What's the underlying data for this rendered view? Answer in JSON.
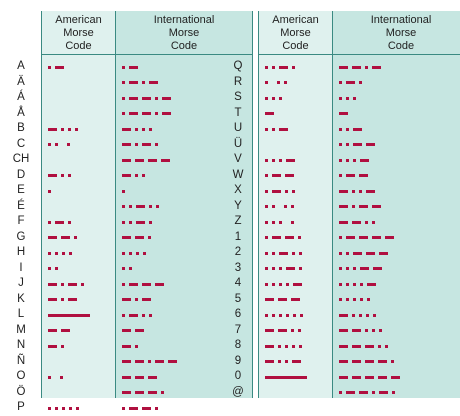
{
  "headers": {
    "american": [
      "American",
      "Morse",
      "Code"
    ],
    "international": [
      "International",
      "Morse",
      "Code"
    ]
  },
  "left_table": [
    {
      "char": "A",
      "american": ".-",
      "international": ".-"
    },
    {
      "char": "Ä",
      "american": "",
      "international": ".-.-"
    },
    {
      "char": "Á",
      "american": "",
      "international": ".--.-"
    },
    {
      "char": "Å",
      "american": "",
      "international": ".--.-"
    },
    {
      "char": "B",
      "american": "-...",
      "international": "-..."
    },
    {
      "char": "C",
      "american": ".. .",
      "international": "-.-."
    },
    {
      "char": "CH",
      "american": "",
      "international": "----"
    },
    {
      "char": "D",
      "american": "-..",
      "international": "-.."
    },
    {
      "char": "E",
      "american": ".",
      "international": "."
    },
    {
      "char": "É",
      "american": "",
      "international": "..-.."
    },
    {
      "char": "F",
      "american": ".-.",
      "international": "..-."
    },
    {
      "char": "G",
      "american": "--.",
      "international": "--."
    },
    {
      "char": "H",
      "american": "....",
      "international": "...."
    },
    {
      "char": "I",
      "american": "..",
      "international": ".."
    },
    {
      "char": "J",
      "american": "-.-.",
      "international": ".---"
    },
    {
      "char": "K",
      "american": "-.-",
      "international": "-.-"
    },
    {
      "char": "L",
      "american": "L",
      "international": ".-.."
    },
    {
      "char": "M",
      "american": "--",
      "international": "--"
    },
    {
      "char": "N",
      "american": "-.",
      "international": "-."
    },
    {
      "char": "Ñ",
      "american": "",
      "international": "--.--"
    },
    {
      "char": "O",
      "american": ". .",
      "international": "---"
    },
    {
      "char": "Ö",
      "american": "",
      "international": "---."
    },
    {
      "char": "P",
      "american": ".....",
      "international": ".--."
    }
  ],
  "right_table": [
    {
      "char": "Q",
      "american": "..-.",
      "international": "--.-"
    },
    {
      "char": "R",
      "american": ". ..",
      "international": ".-."
    },
    {
      "char": "S",
      "american": "...",
      "international": "..."
    },
    {
      "char": "T",
      "american": "-",
      "international": "-"
    },
    {
      "char": "U",
      "american": "..-",
      "international": "..-"
    },
    {
      "char": "Ü",
      "american": "",
      "international": "..--"
    },
    {
      "char": "V",
      "american": "...-",
      "international": "...-"
    },
    {
      "char": "W",
      "american": ".--",
      "international": ".--"
    },
    {
      "char": "X",
      "american": ".-..",
      "international": "-..-"
    },
    {
      "char": "Y",
      "american": ".. ..",
      "international": "-.--"
    },
    {
      "char": "Z",
      "american": "... .",
      "international": "--.."
    },
    {
      "char": "1",
      "american": ".--.",
      "international": ".----"
    },
    {
      "char": "2",
      "american": "..-..",
      "international": "..---"
    },
    {
      "char": "3",
      "american": "...-.",
      "international": "...--"
    },
    {
      "char": "4",
      "american": "....-",
      "international": "....-"
    },
    {
      "char": "5",
      "american": "---",
      "international": "....."
    },
    {
      "char": "6",
      "american": "......",
      "international": "-...."
    },
    {
      "char": "7",
      "american": "--..",
      "international": "--..."
    },
    {
      "char": "8",
      "american": "-....",
      "international": "---.."
    },
    {
      "char": "9",
      "american": "-..-",
      "international": "----."
    },
    {
      "char": "0",
      "american": "L",
      "international": "-----"
    },
    {
      "char": "@",
      "american": "",
      "international": ".--.-."
    }
  ],
  "colors": {
    "mark": "#b01040",
    "american_column": "#dff1ee",
    "international_column": "#c6e6e1",
    "rule": "#3a8a82"
  }
}
